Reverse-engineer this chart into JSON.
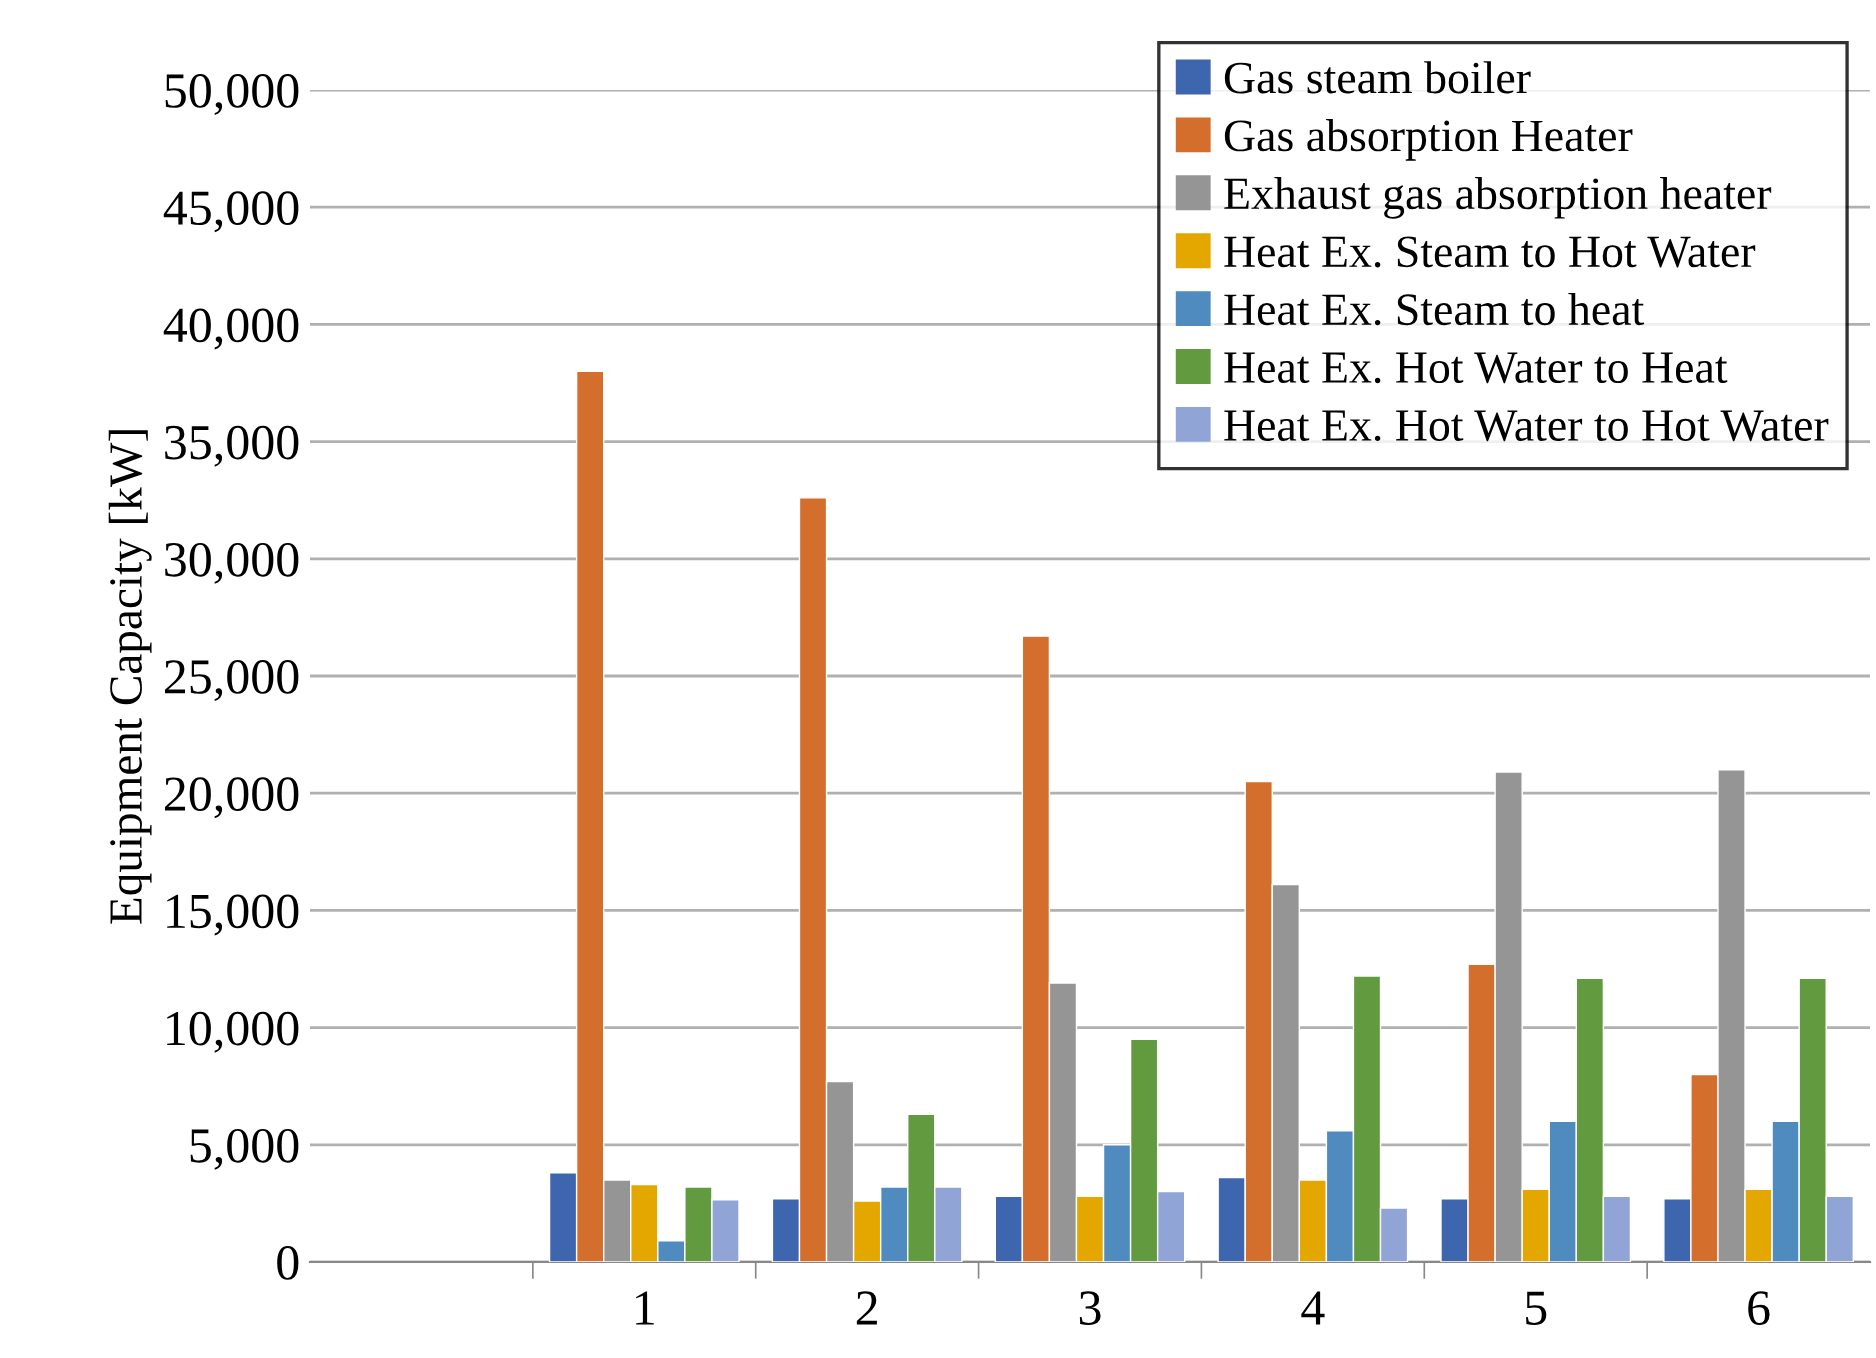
{
  "chart_data": {
    "type": "bar",
    "ylabel": "Equipment Capacity [kW]",
    "categories": [
      null,
      "1",
      "2",
      "3",
      "4",
      "5",
      "6"
    ],
    "series": [
      {
        "name": "Gas steam boiler",
        "color": "#3d66ae",
        "values": [
          null,
          3800,
          2700,
          2800,
          3600,
          2700,
          2700
        ]
      },
      {
        "name": "Gas absorption Heater",
        "color": "#d46e2c",
        "values": [
          null,
          38000,
          32600,
          26700,
          20500,
          12700,
          8000
        ]
      },
      {
        "name": "Exhaust gas absorption heater",
        "color": "#959595",
        "values": [
          null,
          3500,
          7700,
          11900,
          16100,
          20900,
          21000
        ]
      },
      {
        "name": "Heat Ex. Steam to Hot Water",
        "color": "#e3a700",
        "values": [
          null,
          3300,
          2600,
          2800,
          3500,
          3100,
          3100
        ]
      },
      {
        "name": "Heat Ex. Steam to heat",
        "color": "#4f8bbf",
        "values": [
          null,
          900,
          3200,
          5000,
          5600,
          6000,
          6000
        ]
      },
      {
        "name": "Heat Ex. Hot Water to Heat",
        "color": "#629a3f",
        "values": [
          null,
          3200,
          6300,
          9500,
          12200,
          12100,
          12100
        ]
      },
      {
        "name": "Heat Ex. Hot Water to Hot Water",
        "color": "#91a4d6",
        "values": [
          null,
          2650,
          3200,
          3000,
          2300,
          2800,
          2800
        ]
      }
    ],
    "ylim": [
      0,
      50000
    ],
    "yticks": [
      0,
      {
        "value": 5000,
        "label": "5,000"
      },
      {
        "value": 10000,
        "label": "10,000"
      },
      {
        "value": 15000,
        "label": "15,000"
      },
      {
        "value": 20000,
        "label": "20,000"
      },
      {
        "value": 25000,
        "label": "25,000"
      },
      {
        "value": 30000,
        "label": "30,000"
      },
      {
        "value": 35000,
        "label": "35,000"
      },
      {
        "value": 40000,
        "label": "40,000"
      },
      {
        "value": 45000,
        "label": "45,000"
      },
      {
        "value": 50000,
        "label": "50,000"
      }
    ],
    "grid": "y",
    "legend": "top right"
  }
}
